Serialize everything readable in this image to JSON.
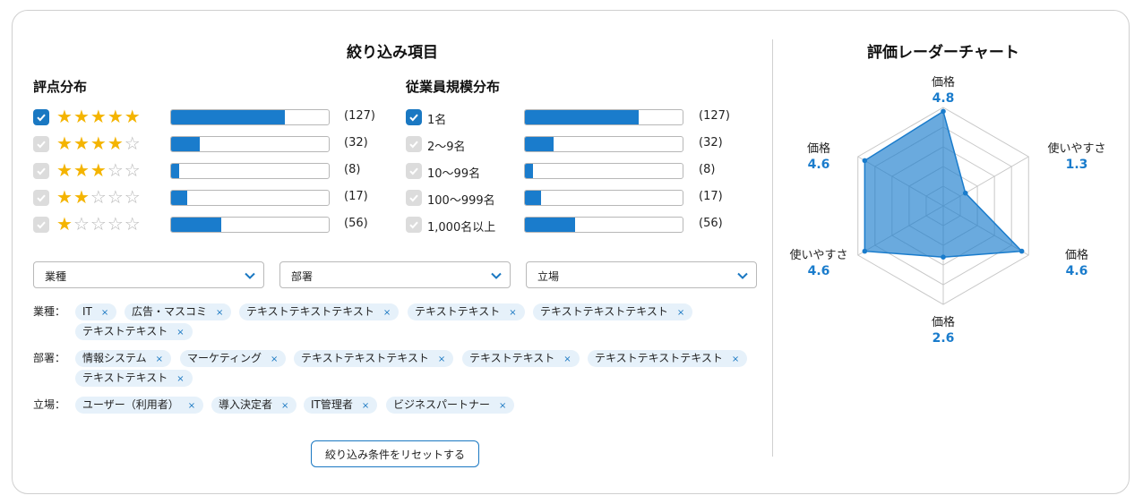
{
  "filter": {
    "title": "絞り込み項目",
    "rating_title": "評点分布",
    "employee_title": "従業員規模分布",
    "ratings": [
      {
        "stars": 5,
        "count": "(127)",
        "fraction": 0.72,
        "checked": true
      },
      {
        "stars": 4,
        "count": "(32)",
        "fraction": 0.18,
        "checked": false
      },
      {
        "stars": 3,
        "count": "(8)",
        "fraction": 0.05,
        "checked": false
      },
      {
        "stars": 2,
        "count": "(17)",
        "fraction": 0.1,
        "checked": false
      },
      {
        "stars": 1,
        "count": "(56)",
        "fraction": 0.32,
        "checked": false
      }
    ],
    "employees": [
      {
        "label": "1名",
        "count": "(127)",
        "fraction": 0.72,
        "checked": true
      },
      {
        "label": "2〜9名",
        "count": "(32)",
        "fraction": 0.18,
        "checked": false
      },
      {
        "label": "10〜99名",
        "count": "(8)",
        "fraction": 0.05,
        "checked": false
      },
      {
        "label": "100〜999名",
        "count": "(17)",
        "fraction": 0.1,
        "checked": false
      },
      {
        "label": "1,000名以上",
        "count": "(56)",
        "fraction": 0.32,
        "checked": false
      }
    ],
    "selects": [
      "業種",
      "部署",
      "立場"
    ],
    "tags": {
      "industry_label": "業種：",
      "industry": [
        "IT",
        "広告・マスコミ",
        "テキストテキストテキスト",
        "テキストテキスト",
        "テキストテキストテキスト",
        "テキストテキスト"
      ],
      "dept_label": "部署：",
      "dept": [
        "情報システム",
        "マーケティング",
        "テキストテキストテキスト",
        "テキストテキスト",
        "テキストテキストテキスト",
        "テキストテキスト"
      ],
      "role_label": "立場：",
      "role": [
        "ユーザー（利用者）",
        "導入決定者",
        "IT管理者",
        "ビジネスパートナー"
      ]
    },
    "reset_label": "絞り込み条件をリセットする",
    "remove_glyph": "×"
  },
  "radar": {
    "title": "評価レーダーチャート",
    "max": 5,
    "axes": [
      {
        "label": "価格",
        "value": 4.8,
        "display": "4.8"
      },
      {
        "label": "使いやすさ",
        "value": 1.3,
        "display": "1.3"
      },
      {
        "label": "価格",
        "value": 4.6,
        "display": "4.6"
      },
      {
        "label": "価格",
        "value": 2.6,
        "display": "2.6"
      },
      {
        "label": "使いやすさ",
        "value": 4.6,
        "display": "4.6"
      },
      {
        "label": "価格",
        "value": 4.6,
        "display": "4.6"
      }
    ],
    "fill_color": "#1a7ccc",
    "grid_color": "#c8c8c8"
  },
  "colors": {
    "accent": "#1a78c2",
    "star": "#f4b400",
    "chip_bg": "#e6f1fa"
  }
}
